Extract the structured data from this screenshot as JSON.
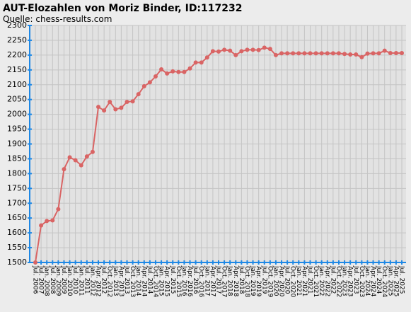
{
  "chart_data": {
    "type": "line",
    "title": "AUT-Elozahlen von Moriz Binder, ID:117232",
    "subtitle": "Quelle: chess-results.com",
    "categories": [
      "Jul. 2006",
      "Jul. 2007",
      "Jan. 2008",
      "Jul. 2008",
      "Jan. 2009",
      "Jul. 2009",
      "Jan. 2010",
      "Jul. 2010",
      "Jan. 2011",
      "Jul. 2011",
      "Jan. 2012",
      "Apr. 2012",
      "Jul. 2012",
      "Oct. 2012",
      "Jan. 2013",
      "Apr. 2013",
      "Jul. 2013",
      "Oct. 2013",
      "Jan. 2014",
      "Apr. 2014",
      "Jul. 2014",
      "Oct. 2014",
      "Jan. 2015",
      "Apr. 2015",
      "Jul. 2015",
      "Oct. 2015",
      "Jan. 2016",
      "Apr. 2016",
      "Jul. 2016",
      "Oct. 2016",
      "Jan. 2017",
      "Apr. 2017",
      "Jul. 2017",
      "Oct. 2017",
      "Jan. 2018",
      "Apr. 2018",
      "Jul. 2018",
      "Oct. 2018",
      "Jan. 2019",
      "Apr. 2019",
      "Jul. 2019",
      "Oct. 2019",
      "Jan. 2020",
      "Apr. 2020",
      "Jul. 2020",
      "Oct. 2020",
      "Jan. 2021",
      "Apr. 2021",
      "Jul. 2021",
      "Oct. 2021",
      "Jan. 2022",
      "Apr. 2022",
      "Jul. 2022",
      "Oct. 2022",
      "Jan. 2023",
      "Apr. 2023",
      "Jul. 2023",
      "Oct. 2023",
      "Jan. 2024",
      "Apr. 2024",
      "Jul. 2024",
      "Oct. 2024",
      "Jan. 2025",
      "Apr. 2025",
      "Jul. 2025"
    ],
    "values": [
      1500,
      1625,
      1640,
      1642,
      1680,
      1815,
      1855,
      1845,
      1828,
      1858,
      1873,
      2025,
      2013,
      2042,
      2017,
      2022,
      2042,
      2044,
      2068,
      2095,
      2108,
      2128,
      2152,
      2138,
      2145,
      2143,
      2143,
      2155,
      2175,
      2175,
      2192,
      2213,
      2212,
      2218,
      2215,
      2200,
      2213,
      2218,
      2218,
      2217,
      2225,
      2221,
      2200,
      2206,
      2206,
      2206,
      2206,
      2206,
      2206,
      2206,
      2206,
      2206,
      2206,
      2206,
      2204,
      2202,
      2202,
      2193,
      2205,
      2206,
      2206,
      2215,
      2207,
      2207,
      2207
    ],
    "color": "#d96464",
    "ylim": [
      1500,
      2300
    ],
    "yticks": [
      1500,
      1550,
      1600,
      1650,
      1700,
      1750,
      1800,
      1850,
      1900,
      1950,
      2000,
      2050,
      2100,
      2150,
      2200,
      2250,
      2300
    ],
    "grid": true
  }
}
